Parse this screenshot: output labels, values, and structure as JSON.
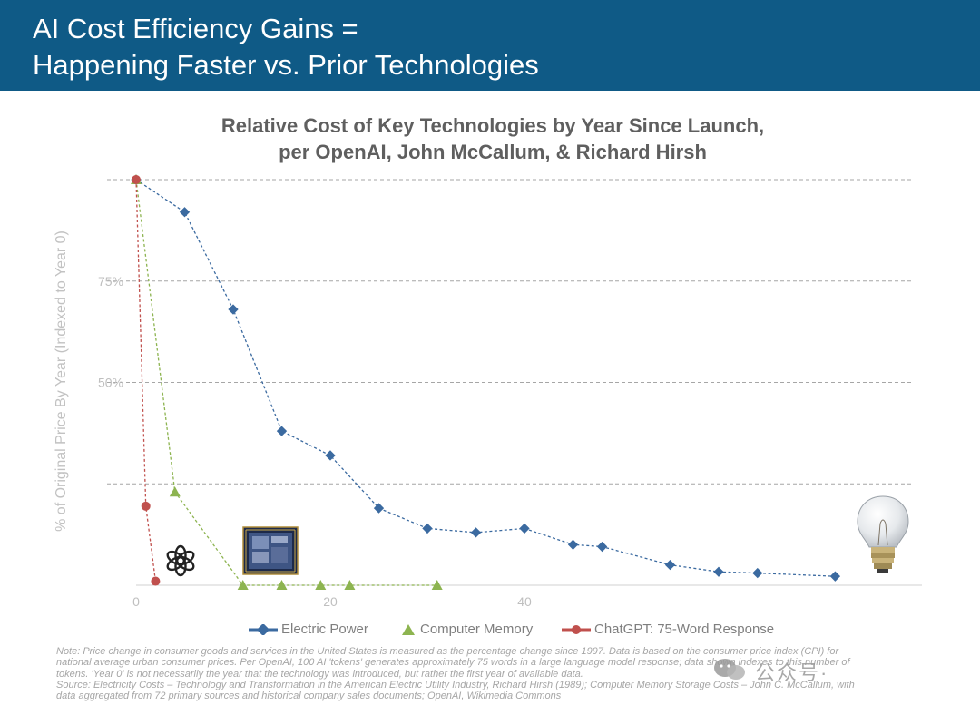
{
  "header": {
    "title_line1": "AI Cost Efficiency Gains =",
    "title_line2": "Happening Faster vs. Prior Technologies"
  },
  "chart_data": {
    "type": "line",
    "title_line1": "Relative Cost of Key Technologies by Year Since Launch,",
    "title_line2": "per OpenAI, John McCallum, & Richard Hirsh",
    "ylabel": "% of Original Price By Year (Indexed to Year 0)",
    "xlabel": "",
    "xlim": [
      0,
      80
    ],
    "ylim": [
      0,
      100
    ],
    "y_ticks": [
      {
        "value": 75,
        "label": "75%"
      },
      {
        "value": 50,
        "label": "50%"
      }
    ],
    "x_ticks": [
      {
        "value": 0,
        "label": "0"
      },
      {
        "value": 20,
        "label": "20"
      },
      {
        "value": 40,
        "label": "40"
      }
    ],
    "grid": true,
    "legend_position": "bottom",
    "series": [
      {
        "name": "Electric Power",
        "color": "#3b6aa0",
        "marker": "diamond",
        "line": true,
        "x": [
          0,
          5,
          10,
          15,
          20,
          25,
          30,
          35,
          40,
          45,
          48,
          55,
          60,
          64,
          72
        ],
        "y": [
          100,
          92,
          68,
          38,
          32,
          19,
          14,
          13,
          14,
          10,
          9.5,
          5,
          3.3,
          3,
          2.2
        ]
      },
      {
        "name": "Computer Memory",
        "color": "#8db450",
        "marker": "triangle",
        "line": true,
        "x": [
          0,
          4,
          11,
          15,
          19,
          22,
          31
        ],
        "y": [
          100,
          23,
          0,
          0,
          0,
          0,
          0
        ]
      },
      {
        "name": "ChatGPT: 75-Word Response",
        "color": "#c0504d",
        "marker": "circle",
        "line": true,
        "x": [
          0,
          1,
          2
        ],
        "y": [
          100,
          19.5,
          1
        ]
      }
    ]
  },
  "legend": {
    "electric": "Electric Power",
    "memory": "Computer Memory",
    "chatgpt": "ChatGPT: 75-Word Response"
  },
  "notes": {
    "line1": "Note: Price change in consumer goods and services in the United States is measured as the percentage change since 1997. Data is based on the consumer price index (CPI) for",
    "line2": "national average urban consumer prices. Per OpenAI, 100 AI 'tokens' generates approximately 75 words in a large language model response; data shown indexes to this number of",
    "line3": "tokens. 'Year 0' is not necessarily the year that the technology was introduced, but rather the first year of available data.",
    "line4": "Source: Electricity Costs – Technology and Transformation in the American Electric Utility Industry, Richard Hirsh (1989); Computer Memory Storage Costs – John C. McCallum, with",
    "line5": "data aggregated from 72 primary sources and historical company sales documents; OpenAI, Wikimedia Commons"
  },
  "watermark": {
    "text": "公众号·"
  },
  "icons": [
    "openai-logo-icon",
    "memory-chip-icon",
    "light-bulb-icon",
    "wechat-icon"
  ]
}
